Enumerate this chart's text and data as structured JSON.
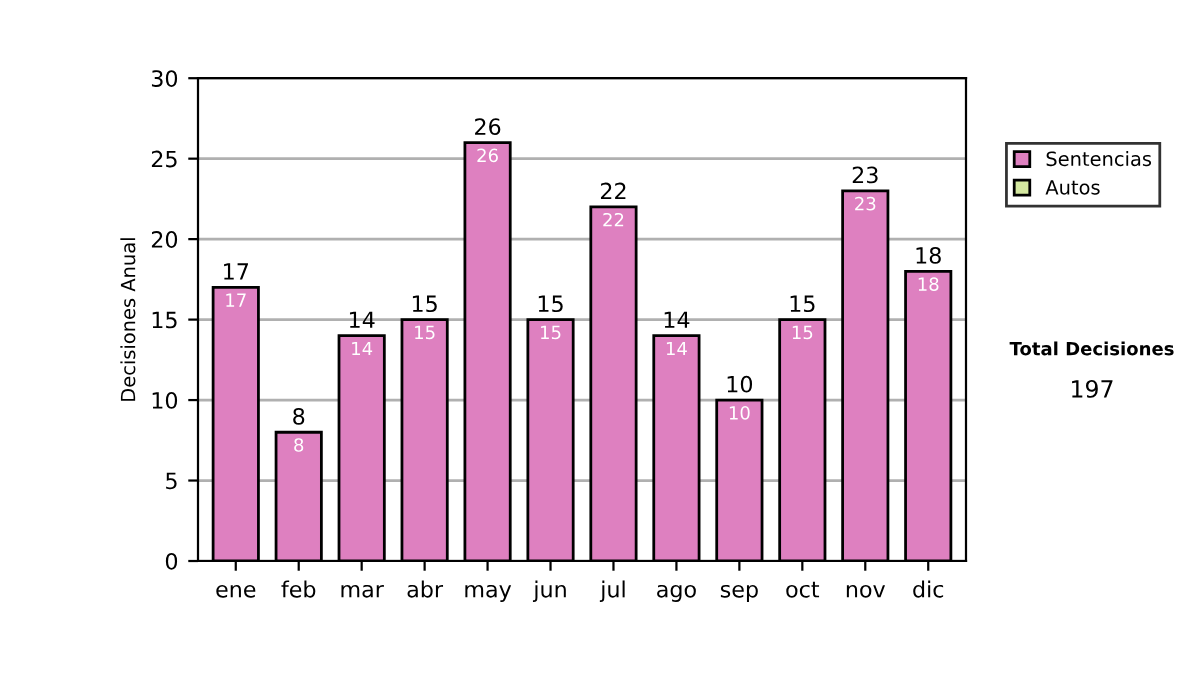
{
  "chart_data": {
    "type": "bar",
    "ylabel": "Decisiones Anual",
    "categories": [
      "ene",
      "feb",
      "mar",
      "abr",
      "may",
      "jun",
      "jul",
      "ago",
      "sep",
      "oct",
      "nov",
      "dic"
    ],
    "stacked": true,
    "series": [
      {
        "name": "Sentencias",
        "color": "#de80c0",
        "values": [
          17,
          8,
          14,
          15,
          26,
          15,
          22,
          14,
          10,
          15,
          23,
          18
        ],
        "value_labels": [
          "17",
          "8",
          "14",
          "15",
          "26",
          "15",
          "22",
          "14",
          "10",
          "15",
          "23",
          "18"
        ]
      },
      {
        "name": "Autos",
        "color": "#d4e8a0",
        "values": [
          0,
          0,
          0,
          0,
          0,
          0,
          0,
          0,
          0,
          0,
          0,
          0
        ]
      }
    ],
    "totals": [
      "17",
      "8",
      "14",
      "15",
      "26",
      "15",
      "22",
      "14",
      "10",
      "15",
      "23",
      "18"
    ],
    "ylim": [
      0,
      30
    ],
    "yticks": [
      0,
      5,
      10,
      15,
      20,
      25,
      30
    ],
    "grid": "y",
    "legend": "right",
    "annotations": [
      "Total Decisiones",
      "197"
    ]
  }
}
